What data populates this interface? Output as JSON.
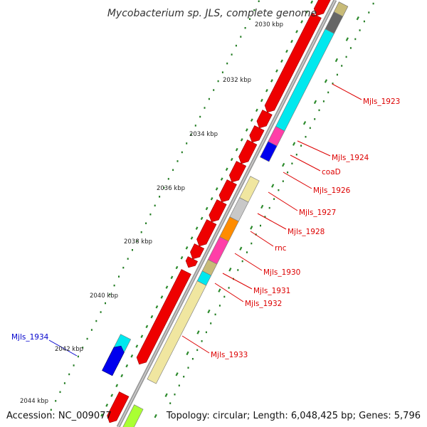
{
  "title": "Mycobacterium sp. JLS, complete genome",
  "footer": {
    "accession": "Accession: NC_009077",
    "topology": "Topology: circular; Length: 6,048,425 bp; Genes: 5,796"
  },
  "colors": {
    "backbone": "#888888",
    "tick": "#1f7a1f",
    "label_default": "#dd0000",
    "label_highlight": "#0000cc"
  },
  "kbp_marks": [
    "2030 kbp",
    "2032 kbp",
    "2034 kbp",
    "2036 kbp",
    "2038 kbp",
    "2040 kbp",
    "2042 kbp",
    "2044 kbp"
  ],
  "genes": [
    {
      "label": "Mjls_1923",
      "color": "#dd0000"
    },
    {
      "label": "Mjls_1924",
      "color": "#dd0000"
    },
    {
      "label": "coaD",
      "color": "#dd0000"
    },
    {
      "label": "Mjls_1926",
      "color": "#dd0000"
    },
    {
      "label": "Mjls_1927",
      "color": "#dd0000"
    },
    {
      "label": "Mjls_1928",
      "color": "#dd0000"
    },
    {
      "label": "rnc",
      "color": "#dd0000"
    },
    {
      "label": "Mjls_1930",
      "color": "#dd0000"
    },
    {
      "label": "Mjls_1931",
      "color": "#dd0000"
    },
    {
      "label": "Mjls_1932",
      "color": "#dd0000"
    },
    {
      "label": "Mjls_1933",
      "color": "#dd0000"
    },
    {
      "label": "Mjls_1934",
      "color": "#0000cc"
    }
  ]
}
